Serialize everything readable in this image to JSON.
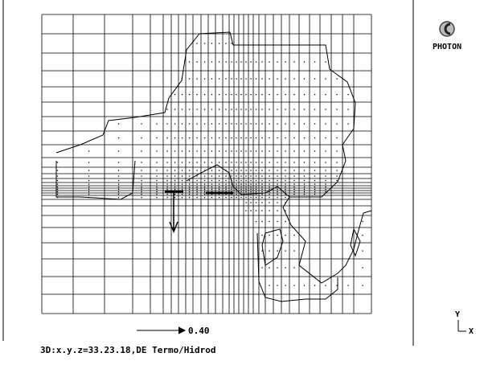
{
  "logo": {
    "label": "PHOTON"
  },
  "reference_vector": {
    "label": "0.40"
  },
  "status": {
    "text": "3D:x.y.z=33.23.18,DE Termo/Hidrod"
  },
  "axes_icon": {
    "y_label": "Y",
    "x_label": "X"
  }
}
